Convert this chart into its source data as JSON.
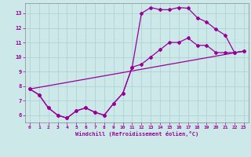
{
  "xlabel": "Windchill (Refroidissement éolien,°C)",
  "xlim": [
    -0.5,
    23.5
  ],
  "ylim": [
    5.5,
    13.7
  ],
  "xticks": [
    0,
    1,
    2,
    3,
    4,
    5,
    6,
    7,
    8,
    9,
    10,
    11,
    12,
    13,
    14,
    15,
    16,
    17,
    18,
    19,
    20,
    21,
    22,
    23
  ],
  "yticks": [
    6,
    7,
    8,
    9,
    10,
    11,
    12,
    13
  ],
  "line_color": "#990099",
  "bg_color": "#cce8e8",
  "line1_x": [
    0,
    1,
    2,
    3,
    4,
    5,
    6,
    7,
    8,
    9,
    10,
    11,
    12,
    13,
    14,
    15,
    16,
    17,
    18,
    19,
    20,
    21,
    22,
    23
  ],
  "line1_y": [
    7.8,
    7.4,
    6.5,
    6.0,
    5.8,
    6.3,
    6.5,
    6.2,
    6.0,
    6.8,
    7.5,
    9.3,
    13.0,
    13.4,
    13.25,
    13.25,
    13.4,
    13.35,
    12.7,
    12.4,
    11.9,
    11.5,
    10.3,
    10.4
  ],
  "line2_x": [
    0,
    1,
    2,
    3,
    4,
    5,
    6,
    7,
    8,
    9,
    10,
    11,
    12,
    13,
    14,
    15,
    16,
    17,
    18,
    19,
    20,
    21,
    22,
    23
  ],
  "line2_y": [
    7.8,
    7.4,
    6.5,
    6.0,
    5.8,
    6.3,
    6.5,
    6.2,
    6.0,
    6.8,
    7.5,
    9.3,
    9.5,
    10.0,
    10.5,
    11.0,
    11.0,
    11.3,
    10.8,
    10.8,
    10.3,
    10.3,
    10.3,
    10.4
  ],
  "line3_x": [
    0,
    23
  ],
  "line3_y": [
    7.8,
    10.4
  ],
  "marker": "D",
  "markersize": 2.0,
  "linewidth": 0.9
}
